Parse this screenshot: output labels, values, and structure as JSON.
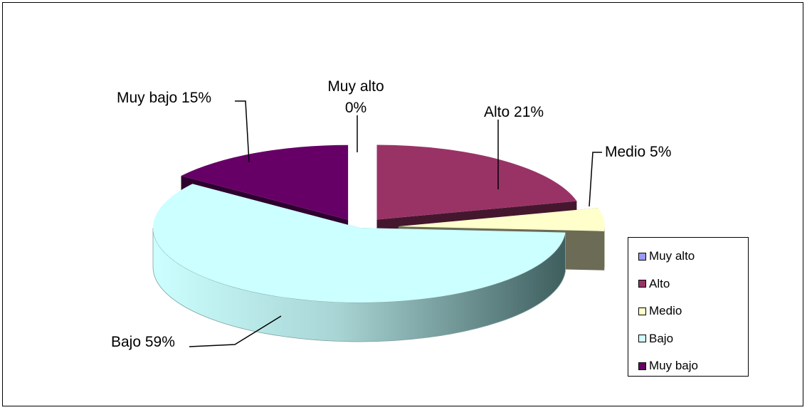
{
  "chart_data": {
    "type": "pie",
    "style": "3d-exploded",
    "categories": [
      "Muy alto",
      "Alto",
      "Medio",
      "Bajo",
      "Muy bajo"
    ],
    "values": [
      0,
      21,
      5,
      59,
      15
    ],
    "data_labels": [
      "Muy alto 0%",
      "Alto 21%",
      "Medio 5%",
      "Bajo 59%",
      "Muy bajo 15%"
    ],
    "colors": [
      "#9999ff",
      "#993366",
      "#ffffcc",
      "#ccffff",
      "#660066"
    ],
    "title": "",
    "legend_position": "right"
  },
  "legend": {
    "items": [
      {
        "label": "Muy alto",
        "color": "#9999ff"
      },
      {
        "label": "Alto",
        "color": "#993366"
      },
      {
        "label": "Medio",
        "color": "#ffffcc"
      },
      {
        "label": "Bajo",
        "color": "#ccffff"
      },
      {
        "label": "Muy bajo",
        "color": "#660066"
      }
    ]
  }
}
